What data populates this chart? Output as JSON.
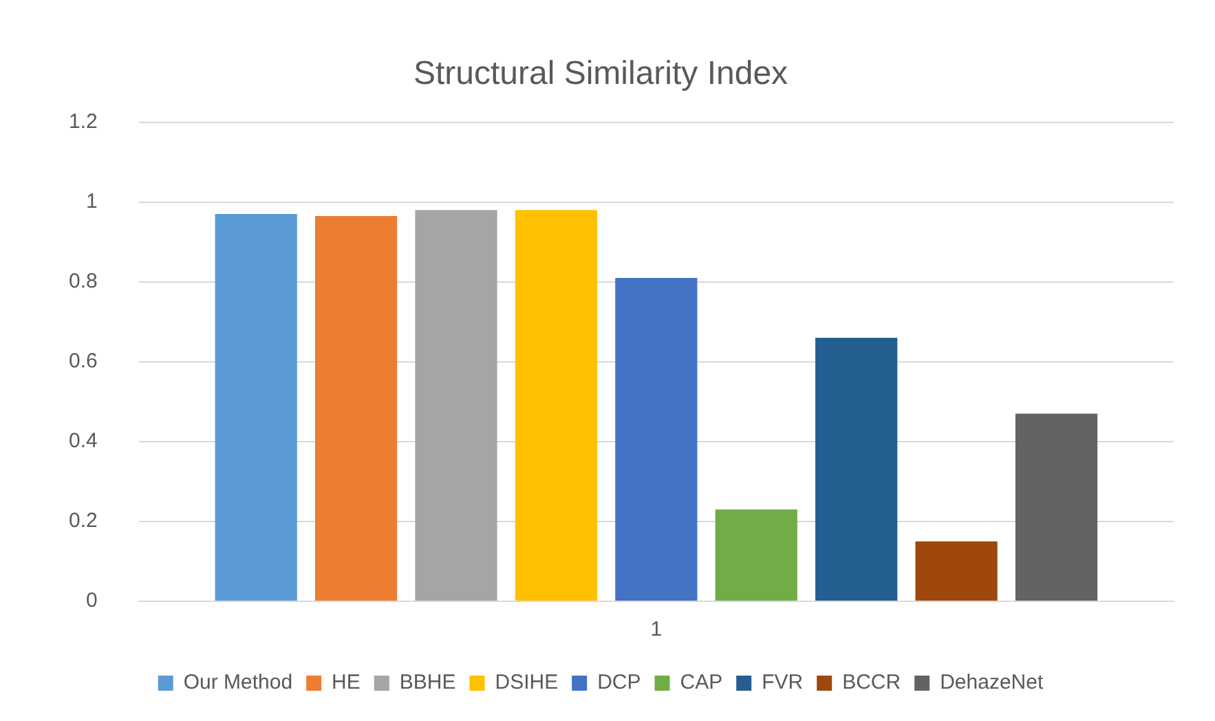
{
  "chart_data": {
    "type": "bar",
    "title": "Structural Similarity Index",
    "categories": [
      "1"
    ],
    "series": [
      {
        "name": "Our Method",
        "color": "#5b9bd5",
        "values": [
          0.97
        ]
      },
      {
        "name": "HE",
        "color": "#ed7d31",
        "values": [
          0.965
        ]
      },
      {
        "name": "BBHE",
        "color": "#a5a5a5",
        "values": [
          0.98
        ]
      },
      {
        "name": "DSIHE",
        "color": "#ffc000",
        "values": [
          0.98
        ]
      },
      {
        "name": "DCP",
        "color": "#4472c4",
        "values": [
          0.81
        ]
      },
      {
        "name": "CAP",
        "color": "#70ad47",
        "values": [
          0.23
        ]
      },
      {
        "name": "FVR",
        "color": "#255e91",
        "values": [
          0.66
        ]
      },
      {
        "name": "BCCR",
        "color": "#9e480e",
        "values": [
          0.15
        ]
      },
      {
        "name": "DehazeNet",
        "color": "#636363",
        "values": [
          0.47
        ]
      }
    ],
    "ylim": [
      0,
      1.2
    ],
    "yticks": [
      0,
      0.2,
      0.4,
      0.6,
      0.8,
      1,
      1.2
    ],
    "grid": "y",
    "legend": "bottom"
  }
}
